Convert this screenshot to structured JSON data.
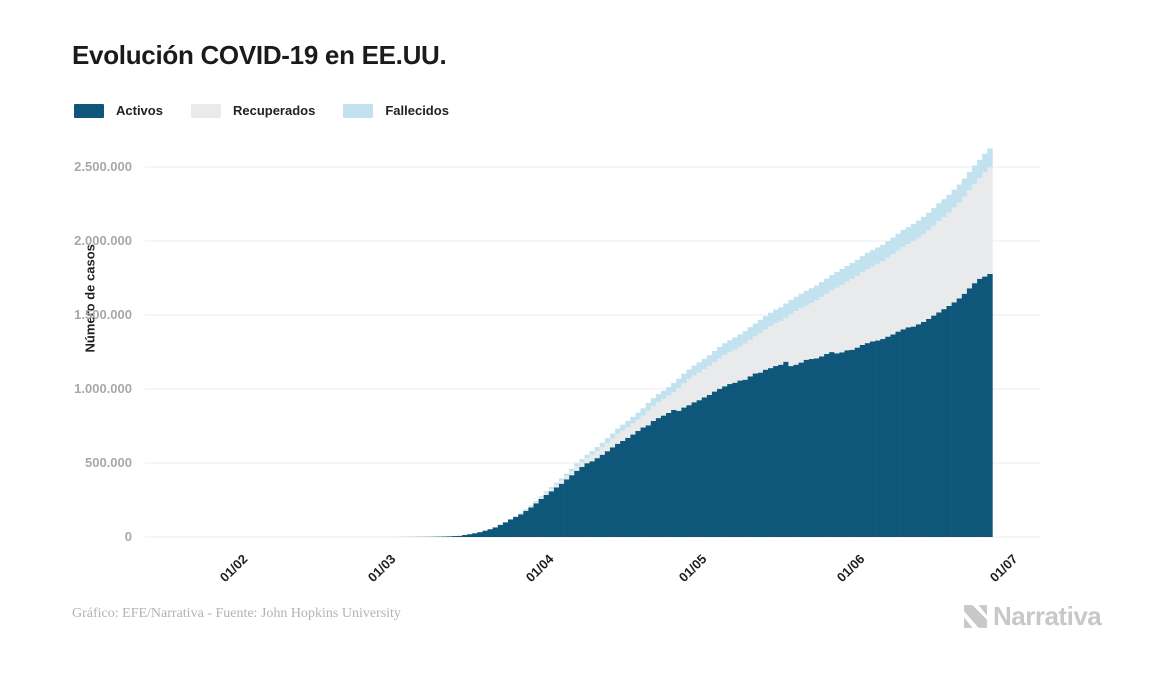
{
  "title": "Evolución COVID-19 en EE.UU.",
  "legend": [
    {
      "label": "Activos",
      "color": "#0e567a"
    },
    {
      "label": "Recuperados",
      "color": "#e9eaeb"
    },
    {
      "label": "Fallecidos",
      "color": "#c2e2f0"
    }
  ],
  "y_axis": {
    "title": "Número de casos",
    "ticks": [
      {
        "label": "0",
        "value": 0
      },
      {
        "label": "500.000",
        "value": 500000
      },
      {
        "label": "1.000.000",
        "value": 1000000
      },
      {
        "label": "1.500.000",
        "value": 1500000
      },
      {
        "label": "2.000.000",
        "value": 2000000
      },
      {
        "label": "2.500.000",
        "value": 2500000
      }
    ]
  },
  "x_axis": {
    "ticks": [
      {
        "label": "01/02",
        "day_index": 10
      },
      {
        "label": "01/03",
        "day_index": 39
      },
      {
        "label": "01/04",
        "day_index": 70
      },
      {
        "label": "01/05",
        "day_index": 100
      },
      {
        "label": "01/06",
        "day_index": 131
      },
      {
        "label": "01/07",
        "day_index": 161
      }
    ]
  },
  "footer": {
    "credit": "Gráfico: EFE/Narrativa - Fuente: John Hopkins University",
    "brand": "Narrativa"
  },
  "chart_data": {
    "type": "bar",
    "stacked": true,
    "title": "Evolución COVID-19 en EE.UU.",
    "ylabel": "Número de casos",
    "xlabel": "",
    "ylim": [
      0,
      2600000
    ],
    "grid": "horizontal",
    "legend_position": "top-left",
    "gridline_color": "#ececec",
    "start_date": "22/01/2020",
    "end_date": "30/06/2020",
    "frequency": "daily",
    "series": [
      {
        "name": "Activos",
        "color": "#0e567a",
        "values": [
          1,
          1,
          2,
          2,
          5,
          5,
          5,
          5,
          5,
          7,
          8,
          8,
          11,
          11,
          11,
          11,
          11,
          11,
          11,
          11,
          12,
          12,
          13,
          13,
          13,
          15,
          15,
          15,
          15,
          15,
          15,
          32,
          32,
          32,
          46,
          46,
          52,
          52,
          60,
          67,
          87,
          110,
          139,
          201,
          297,
          410,
          512,
          674,
          958,
          1257,
          1578,
          2124,
          2704,
          3424,
          4530,
          6296,
          7560,
          13356,
          18709,
          25006,
          32681,
          42942,
          52673,
          64475,
          81946,
          99207,
          118380,
          135754,
          153155,
          177089,
          199799,
          227933,
          257850,
          284755,
          308757,
          334510,
          359697,
          388789,
          417748,
          447283,
          473011,
          498676,
          511866,
          532930,
          555912,
          579972,
          605845,
          629909,
          649285,
          669890,
          692217,
          716357,
          739724,
          754792,
          784027,
          803460,
          820141,
          838006,
          858390,
          852481,
          874503,
          890788,
          910441,
          924597,
          943377,
          960112,
          982487,
          1001462,
          1018212,
          1033565,
          1042466,
          1056885,
          1062857,
          1085462,
          1104547,
          1110690,
          1130466,
          1141211,
          1155158,
          1164102,
          1184167,
          1154823,
          1164383,
          1178562,
          1197458,
          1202552,
          1207250,
          1220146,
          1236761,
          1249534,
          1241050,
          1247899,
          1261773,
          1265087,
          1279596,
          1297921,
          1310069,
          1321605,
          1327396,
          1337620,
          1353803,
          1368909,
          1387780,
          1403277,
          1416895,
          1421565,
          1437265,
          1453382,
          1473503,
          1496155,
          1517940,
          1539776,
          1561339,
          1585676,
          1611842,
          1643540,
          1680516,
          1715099,
          1744722,
          1759546,
          1776943
        ]
      },
      {
        "name": "Recuperados",
        "color": "#e9eaeb",
        "values": [
          0,
          0,
          0,
          0,
          0,
          0,
          0,
          0,
          0,
          0,
          0,
          0,
          0,
          0,
          0,
          0,
          0,
          0,
          0,
          0,
          0,
          0,
          0,
          0,
          0,
          0,
          0,
          0,
          0,
          0,
          0,
          3,
          3,
          3,
          5,
          5,
          5,
          6,
          7,
          7,
          7,
          7,
          8,
          8,
          8,
          8,
          8,
          8,
          8,
          8,
          12,
          12,
          12,
          12,
          17,
          17,
          105,
          121,
          147,
          176,
          178,
          348,
          361,
          361,
          681,
          869,
          1072,
          2665,
          5644,
          7024,
          8474,
          9001,
          9707,
          14652,
          17448,
          19581,
          21763,
          23559,
          25410,
          28790,
          31270,
          32988,
          43482,
          47763,
          52096,
          54703,
          58545,
          64840,
          70337,
          72329,
          75204,
          77366,
          80203,
          99079,
          100372,
          106988,
          111424,
          115936,
          120720,
          153947,
          164015,
          175382,
          180152,
          187180,
          189910,
          195036,
          198993,
          205287,
          212534,
          216169,
          224733,
          230333,
          243430,
          246414,
          250747,
          268376,
          272265,
          283178,
          289392,
          294312,
          298418,
          350135,
          361239,
          366736,
          366736,
          379157,
          391508,
          399991,
          406446,
          416461,
          444758,
          458231,
          463868,
          479258,
          485002,
          491706,
          500849,
          506367,
          518522,
          524855,
          533504,
          541513,
          547386,
          556606,
          561816,
          576334,
          583503,
          592191,
          599115,
          606715,
          617460,
          622133,
          630291,
          640198,
          647548,
          656161,
          663562,
          670809,
          679308,
          705203,
          720631
        ]
      },
      {
        "name": "Fallecidos",
        "color": "#c2e2f0",
        "values": [
          0,
          0,
          0,
          0,
          0,
          0,
          0,
          0,
          0,
          0,
          0,
          0,
          0,
          0,
          0,
          0,
          0,
          0,
          0,
          0,
          0,
          0,
          0,
          0,
          0,
          0,
          0,
          0,
          0,
          0,
          0,
          0,
          0,
          0,
          0,
          0,
          0,
          0,
          1,
          1,
          6,
          7,
          11,
          12,
          14,
          17,
          21,
          22,
          28,
          36,
          40,
          47,
          54,
          63,
          85,
          108,
          118,
          200,
          244,
          307,
          417,
          557,
          706,
          942,
          1209,
          1581,
          2026,
          2467,
          3008,
          4059,
          5099,
          6519,
          8029,
          9446,
          10867,
          12576,
          14763,
          16704,
          18279,
          20462,
          22115,
          23649,
          25271,
          26977,
          28342,
          32917,
          35316,
          37448,
          39187,
          42107,
          44444,
          46628,
          49243,
          51487,
          53755,
          55337,
          56632,
          58640,
          60799,
          62996,
          64943,
          66369,
          67447,
          68598,
          71064,
          73455,
          75543,
          77180,
          78795,
          79526,
          80682,
          82356,
          84119,
          85898,
          87530,
          88754,
          89932,
          90978,
          91921,
          93439,
          94702,
          95979,
          97048,
          97948,
          98220,
          98916,
          100418,
          101616,
          102812,
          103781,
          104383,
          105147,
          106180,
          107175,
          108062,
          108211,
          109143,
          109802,
          110503,
          111328,
          112006,
          112925,
          113820,
          114643,
          115347,
          116127,
          116963,
          117717,
          118434,
          119112,
          119719,
          120402,
          120672,
          121228,
          121979,
          122611,
          123476,
          124415,
          125039,
          125803,
          127299
        ]
      }
    ]
  }
}
